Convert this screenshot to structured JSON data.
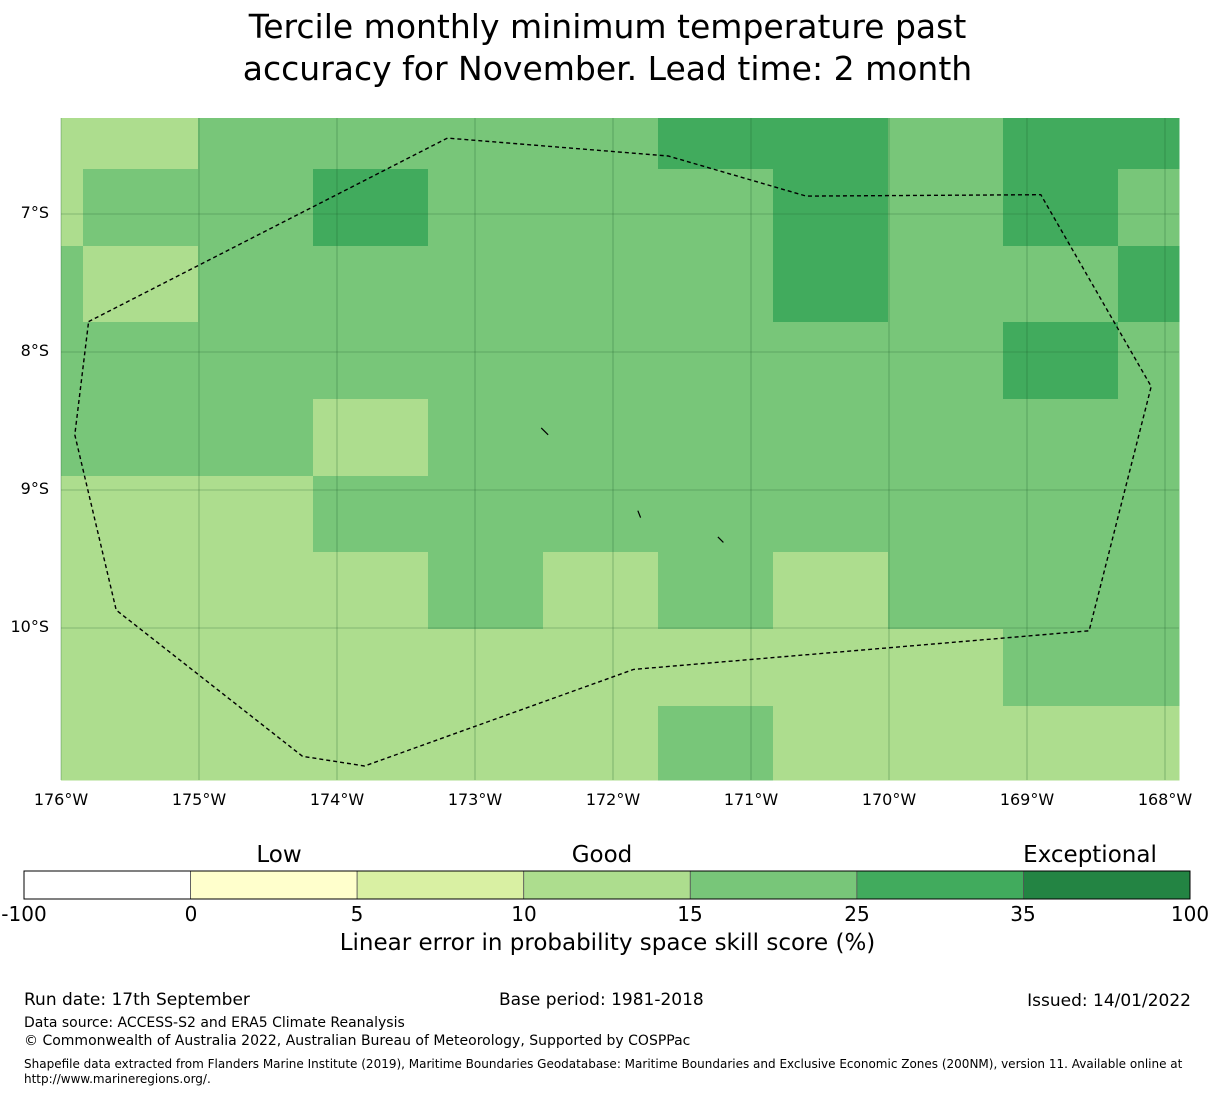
{
  "title": {
    "line1": "Tercile monthly minimum temperature past",
    "line2": "accuracy for November. Lead time: 2 month"
  },
  "map": {
    "lat_labels": [
      "7°S",
      "8°S",
      "9°S",
      "10°S"
    ],
    "lon_labels": [
      "176°W",
      "175°W",
      "174°W",
      "173°W",
      "172°W",
      "171°W",
      "170°W",
      "169°W",
      "168°W"
    ],
    "grid_rows": [
      [
        15,
        15,
        25,
        25,
        25,
        25,
        35,
        35,
        25,
        35,
        35
      ],
      [
        15,
        25,
        25,
        35,
        25,
        25,
        25,
        35,
        25,
        35,
        25
      ],
      [
        25,
        15,
        25,
        25,
        25,
        25,
        25,
        35,
        25,
        25,
        35
      ],
      [
        25,
        25,
        25,
        25,
        25,
        25,
        25,
        25,
        25,
        35,
        25
      ],
      [
        25,
        25,
        25,
        15,
        25,
        25,
        25,
        25,
        25,
        25,
        25
      ],
      [
        15,
        15,
        15,
        25,
        25,
        25,
        25,
        25,
        25,
        25,
        25
      ],
      [
        15,
        15,
        15,
        15,
        25,
        15,
        25,
        15,
        25,
        25,
        25
      ],
      [
        15,
        15,
        15,
        15,
        15,
        15,
        15,
        15,
        15,
        25,
        25
      ],
      [
        15,
        15,
        15,
        15,
        15,
        15,
        25,
        15,
        15,
        15,
        15
      ]
    ],
    "eez_boundary": [
      [
        -175.8,
        -7.78
      ],
      [
        -173.2,
        -6.45
      ],
      [
        -171.6,
        -6.58
      ],
      [
        -170.6,
        -6.87
      ],
      [
        -168.9,
        -6.86
      ],
      [
        -168.1,
        -8.25
      ],
      [
        -168.55,
        -10.02
      ],
      [
        -171.85,
        -10.3
      ],
      [
        -173.8,
        -11.0
      ],
      [
        -174.25,
        -10.93
      ],
      [
        -175.6,
        -9.87
      ],
      [
        -175.9,
        -8.6
      ]
    ],
    "islands": [
      [
        [
          -172.52,
          -8.55
        ],
        [
          -172.47,
          -8.6
        ]
      ],
      [
        [
          -171.82,
          -9.15
        ],
        [
          -171.8,
          -9.2
        ]
      ],
      [
        [
          -171.24,
          -9.34
        ],
        [
          -171.2,
          -9.38
        ]
      ]
    ]
  },
  "colorbar": {
    "categories": {
      "low": "Low",
      "good": "Good",
      "exceptional": "Exceptional"
    },
    "ticks": [
      "-100",
      "0",
      "5",
      "10",
      "15",
      "25",
      "35",
      "100"
    ],
    "segments": [
      {
        "from": -100,
        "to": 0,
        "color": "#ffffff"
      },
      {
        "from": 0,
        "to": 5,
        "color": "#ffffcc"
      },
      {
        "from": 5,
        "to": 10,
        "color": "#d9f0a3"
      },
      {
        "from": 10,
        "to": 15,
        "color": "#addd8e"
      },
      {
        "from": 15,
        "to": 25,
        "color": "#78c679"
      },
      {
        "from": 25,
        "to": 35,
        "color": "#41ab5d"
      },
      {
        "from": 35,
        "to": 100,
        "color": "#238443"
      }
    ],
    "label": "Linear error in probability space skill score (%)"
  },
  "footer": {
    "run_date": "Run date: 17th September",
    "base_period": "Base period: 1981-2018",
    "issued": "Issued: 14/01/2022",
    "data_source": "Data source: ACCESS-S2 and ERA5 Climate Reanalysis",
    "copyright": "© Commonwealth of Australia 2022, Australian Bureau of Meteorology, Supported by COSPPac",
    "shapefile": "Shapefile data extracted from Flanders Marine Institute (2019), Maritime Boundaries Geodatabase: Maritime Boundaries and Exclusive Economic Zones (200NM), version 11. Available online at http://www.marineregions.org/."
  }
}
